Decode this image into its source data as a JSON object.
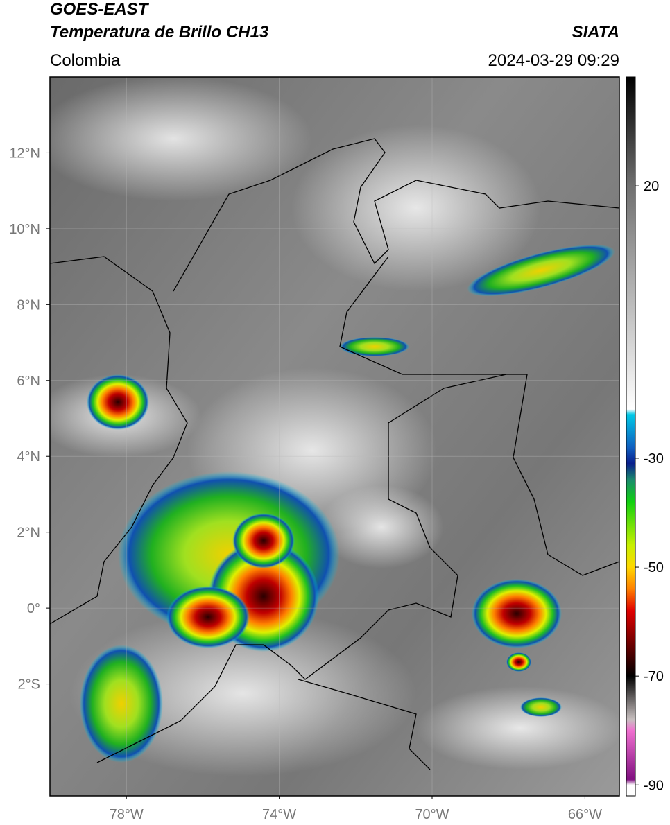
{
  "header": {
    "title_line1": "GOES-EAST",
    "title_line2": "Temperatura de Brillo CH13",
    "subtitle": "Colombia",
    "source": "SIATA",
    "timestamp": "2024-03-29 09:29"
  },
  "map": {
    "lonlim": [
      -80,
      -65.1
    ],
    "latlim": [
      -4.95,
      14
    ],
    "lonticks": [
      {
        "value": -78,
        "label": "78°W"
      },
      {
        "value": -74,
        "label": "74°W"
      },
      {
        "value": -70,
        "label": "70°W"
      },
      {
        "value": -66,
        "label": "66°W"
      }
    ],
    "latticks": [
      {
        "value": 12,
        "label": "12°N"
      },
      {
        "value": 10,
        "label": "10°N"
      },
      {
        "value": 8,
        "label": "8°N"
      },
      {
        "value": 6,
        "label": "6°N"
      },
      {
        "value": 4,
        "label": "4°N"
      },
      {
        "value": 2,
        "label": "2°N"
      },
      {
        "value": 0,
        "label": "0°"
      },
      {
        "value": -2,
        "label": "2°S"
      }
    ],
    "grid": true
  },
  "colorbar": {
    "lim": [
      -92,
      40
    ],
    "ticks": [
      20,
      -30,
      -50,
      -70,
      -90
    ],
    "stops": [
      {
        "value": 40,
        "color": "#000000"
      },
      {
        "value": 20,
        "color": "#707070"
      },
      {
        "value": -21,
        "color": "#ffffff"
      },
      {
        "value": -22,
        "color": "#00c8e6"
      },
      {
        "value": -28,
        "color": "#1060c0"
      },
      {
        "value": -31,
        "color": "#0a1e8c"
      },
      {
        "value": -34,
        "color": "#1a8c6c"
      },
      {
        "value": -38,
        "color": "#10d010"
      },
      {
        "value": -46,
        "color": "#c8f000"
      },
      {
        "value": -50,
        "color": "#ffd800"
      },
      {
        "value": -54,
        "color": "#ff8000"
      },
      {
        "value": -58,
        "color": "#e00000"
      },
      {
        "value": -64,
        "color": "#6e0000"
      },
      {
        "value": -70,
        "color": "#000000"
      },
      {
        "value": -78,
        "color": "#c8c0c0"
      },
      {
        "value": -80,
        "color": "#f070d0"
      },
      {
        "value": -89,
        "color": "#801080"
      },
      {
        "value": -90,
        "color": "#ffffff"
      },
      {
        "value": -92,
        "color": "#ffffff"
      }
    ]
  }
}
